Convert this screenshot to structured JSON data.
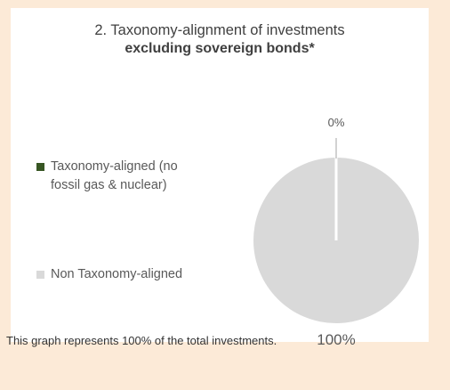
{
  "title": {
    "line1": "2. Taxonomy-alignment of investments",
    "line2": "excluding sovereign bonds*"
  },
  "legend": [
    {
      "label": "Taxonomy-aligned (no fossil gas & nuclear)",
      "color": "#375623"
    },
    {
      "label": "Non Taxonomy-aligned",
      "color": "#d9d9d9"
    }
  ],
  "chart_data": {
    "type": "pie",
    "categories": [
      "Taxonomy-aligned (no fossil gas & nuclear)",
      "Non Taxonomy-aligned"
    ],
    "values": [
      0,
      100
    ],
    "data_labels": [
      "0%",
      "100%"
    ],
    "colors": [
      "#375623",
      "#d9d9d9"
    ],
    "legend_position": "left"
  },
  "footer": "This graph represents 100% of the total investments."
}
